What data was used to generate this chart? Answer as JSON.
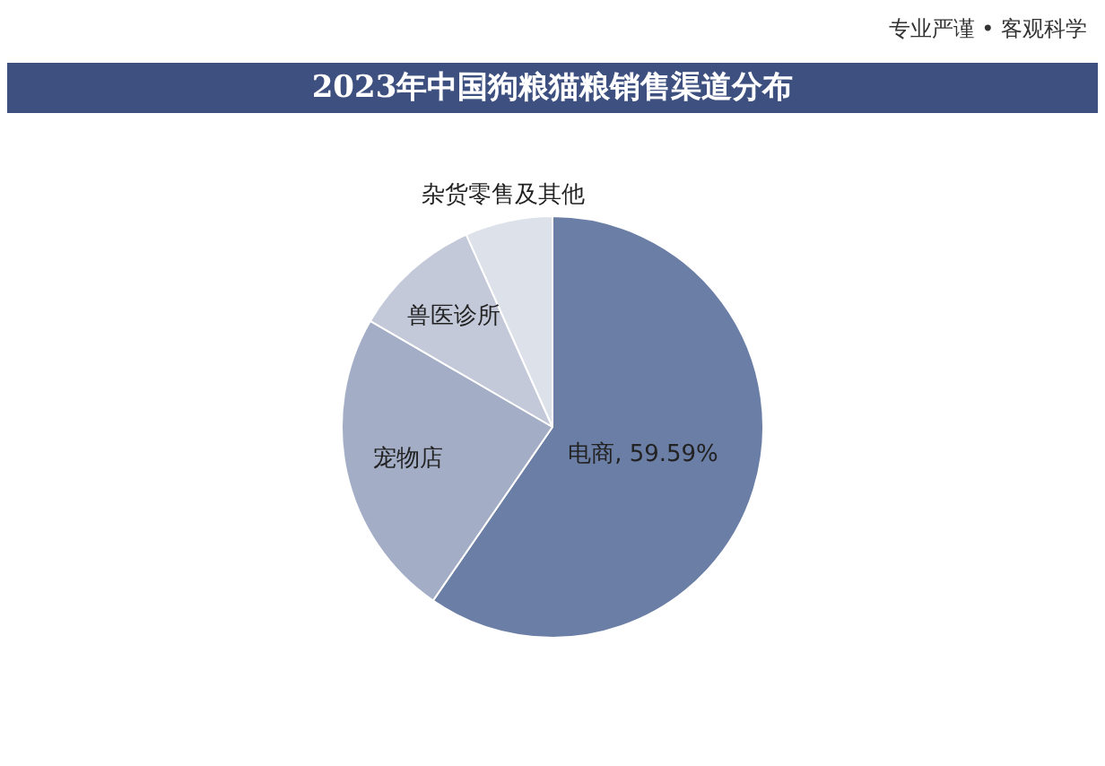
{
  "chart_data": {
    "type": "pie",
    "title": "2023年中国狗粮猫粮销售渠道分布",
    "annotations": [
      "专业严谨 • 客观科学"
    ],
    "categories": [
      "电商",
      "宠物店",
      "兽医诊所",
      "杂货零售及其他"
    ],
    "values": [
      59.59,
      23.8,
      9.9,
      6.71
    ],
    "value_labels": [
      "59.59%",
      null,
      null,
      null
    ],
    "colors": [
      "#6b7ea6",
      "#a3adc6",
      "#c3c9d9",
      "#dde1ea"
    ],
    "legend": false
  }
}
